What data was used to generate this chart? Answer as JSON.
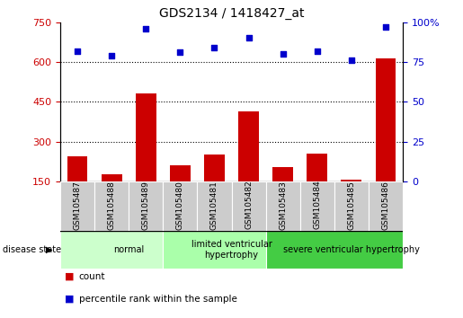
{
  "title": "GDS2134 / 1418427_at",
  "samples": [
    "GSM105487",
    "GSM105488",
    "GSM105489",
    "GSM105480",
    "GSM105481",
    "GSM105482",
    "GSM105483",
    "GSM105484",
    "GSM105485",
    "GSM105486"
  ],
  "counts": [
    245,
    175,
    480,
    210,
    250,
    415,
    205,
    255,
    155,
    615
  ],
  "percentiles": [
    82,
    79,
    96,
    81,
    84,
    90,
    80,
    82,
    76,
    97
  ],
  "ylim_left": [
    150,
    750
  ],
  "ylim_right": [
    0,
    100
  ],
  "yticks_left": [
    150,
    300,
    450,
    600,
    750
  ],
  "yticks_right": [
    0,
    25,
    50,
    75,
    100
  ],
  "bar_color": "#cc0000",
  "dot_color": "#0000cc",
  "groups": [
    {
      "label": "normal",
      "start": 0,
      "end": 3,
      "color": "#ccffcc"
    },
    {
      "label": "limited ventricular\nhypertrophy",
      "start": 3,
      "end": 6,
      "color": "#aaffaa"
    },
    {
      "label": "severe ventricular hypertrophy",
      "start": 6,
      "end": 10,
      "color": "#44cc44"
    }
  ],
  "legend_count_label": "count",
  "legend_percentile_label": "percentile rank within the sample",
  "disease_state_label": "disease state",
  "background_color": "#ffffff",
  "sample_box_color": "#cccccc",
  "gridline_values": [
    300,
    450,
    600
  ]
}
